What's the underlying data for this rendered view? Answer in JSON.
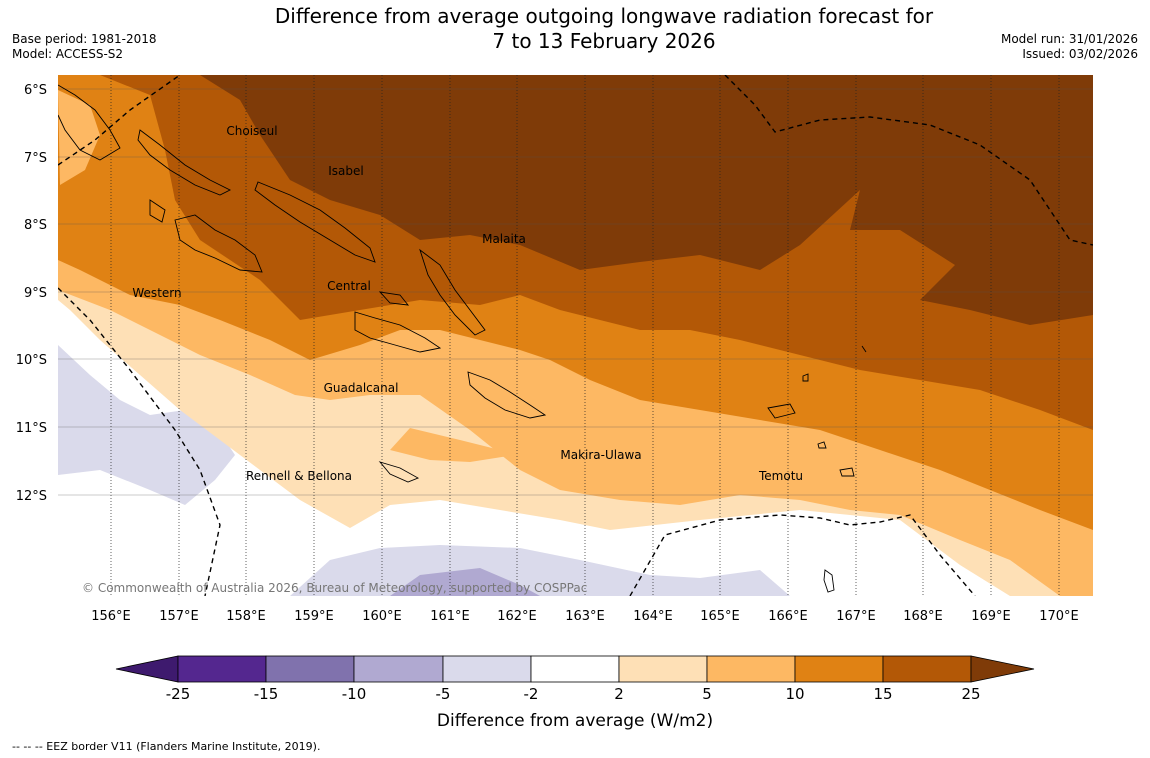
{
  "title": {
    "line1": "Difference from average outgoing longwave radiation forecast for",
    "line2": "7 to 13 February 2026"
  },
  "meta_left": {
    "base_period": "Base period: 1981-2018",
    "model": "Model: ACCESS-S2"
  },
  "meta_right": {
    "model_run": "Model run: 31/01/2026",
    "issued": "Issued: 03/02/2026"
  },
  "axes": {
    "lat_labels": [
      "6°S",
      "7°S",
      "8°S",
      "9°S",
      "10°S",
      "11°S",
      "12°S"
    ],
    "lon_labels": [
      "156°E",
      "157°E",
      "158°E",
      "159°E",
      "160°E",
      "161°E",
      "162°E",
      "163°E",
      "164°E",
      "165°E",
      "166°E",
      "167°E",
      "168°E",
      "169°E",
      "170°E"
    ]
  },
  "regions": [
    {
      "name": "Choiseul",
      "lon": 158.1,
      "lat": 6.6
    },
    {
      "name": "Isabel",
      "lon": 159.5,
      "lat": 7.2
    },
    {
      "name": "Malaita",
      "lon": 161.3,
      "lat": 8.2
    },
    {
      "name": "Central",
      "lon": 159.5,
      "lat": 8.9
    },
    {
      "name": "Western",
      "lon": 156.7,
      "lat": 9.0
    },
    {
      "name": "Guadalcanal",
      "lon": 159.7,
      "lat": 10.4
    },
    {
      "name": "Makira-Ulawa",
      "lon": 163.2,
      "lat": 11.4
    },
    {
      "name": "Rennell & Bellona",
      "lon": 158.8,
      "lat": 11.7
    },
    {
      "name": "Temotu",
      "lon": 165.9,
      "lat": 11.7
    }
  ],
  "copyright": "© Commonwealth of Australia 2026, Bureau of Meteorology, supported by COSPPac",
  "legend": {
    "title": "Difference from average (W/m2)",
    "ticks": [
      "-25",
      "-15",
      "-10",
      "-5",
      "-2",
      "2",
      "5",
      "10",
      "15",
      "25"
    ],
    "colors": [
      "#3e1a6e",
      "#54278f",
      "#8072ad",
      "#b0a9d1",
      "#dadaeb",
      "#ffffff",
      "#fee0b6",
      "#fdb863",
      "#e08214",
      "#b35806",
      "#7f3b08"
    ]
  },
  "footnote": "--  --  -- EEZ border V11 (Flanders Marine Institute, 2019)."
}
